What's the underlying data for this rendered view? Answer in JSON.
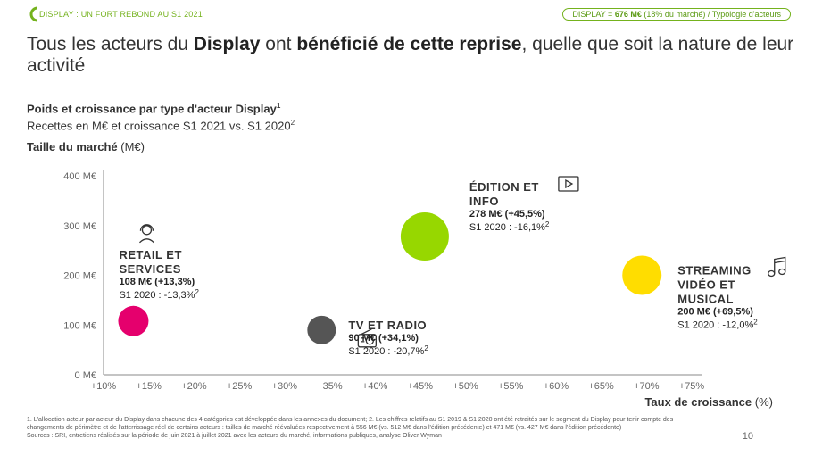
{
  "header": {
    "breadcrumb": "DISPLAY : UN FORT REBOND AU S1 2021",
    "badge_prefix": "DISPLAY = ",
    "badge_value": "676 M€",
    "badge_suffix": " (18% du marché) / Typologie d'acteurs"
  },
  "title": {
    "part1": "Tous les acteurs du ",
    "bold1": "Display",
    "part2": " ont ",
    "bold2": "bénéficié de cette reprise",
    "part3": ", quelle que soit la nature de leur activité"
  },
  "subtitle": {
    "line1": "Poids et croissance par type d'acteur Display",
    "line1_sup": "1",
    "line2": "Recettes en M€ et croissance S1 2021 vs. S1 2020",
    "line2_sup": "2"
  },
  "y_axis_title": {
    "bold": "Taille du marché",
    "unit": " (M€)"
  },
  "x_axis_title": {
    "bold": "Taux de croissance",
    "unit": " (%)"
  },
  "colors": {
    "accent": "#74b21d",
    "retail": "#e5006d",
    "tv": "#555555",
    "edition": "#97d700",
    "streaming": "#ffdd00"
  },
  "chart_data": {
    "type": "scatter",
    "xlim": [
      10,
      75
    ],
    "ylim": [
      0,
      400
    ],
    "x_ticks": [
      "+10%",
      "+15%",
      "+20%",
      "+25%",
      "+30%",
      "+35%",
      "+40%",
      "+45%",
      "+50%",
      "+55%",
      "+60%",
      "+65%",
      "+70%",
      "+75%"
    ],
    "x_tick_values": [
      10,
      15,
      20,
      25,
      30,
      35,
      40,
      45,
      50,
      55,
      60,
      65,
      70,
      75
    ],
    "y_ticks": [
      "0 M€",
      "100 M€",
      "200 M€",
      "300 M€",
      "400 M€"
    ],
    "y_tick_values": [
      0,
      100,
      200,
      300,
      400
    ],
    "points": [
      {
        "name": [
          "RETAIL ET",
          "SERVICES"
        ],
        "x": 13.3,
        "y": 108,
        "value_text": "108 M€ (+13,3%)",
        "prev_text": "S1 2020 : -13,3%",
        "prev_sup": "2",
        "color": "#e5006d",
        "icon": "person-headset-icon",
        "label_side": "top"
      },
      {
        "name": [
          "TV ET RADIO"
        ],
        "x": 34.1,
        "y": 90,
        "value_text": "90 M€ (+34,1%)",
        "prev_text": "S1 2020 : -20,7%",
        "prev_sup": "2",
        "color": "#555555",
        "icon": "radio-icon",
        "label_side": "right"
      },
      {
        "name": [
          "ÉDITION ET",
          "INFO"
        ],
        "x": 45.5,
        "y": 278,
        "value_text": "278 M€ (+45,5%)",
        "prev_text": "S1 2020 : -16,1%",
        "prev_sup": "2",
        "color": "#97d700",
        "icon": "play-icon",
        "label_side": "top"
      },
      {
        "name": [
          "STREAMING",
          "VIDÉO ET",
          "MUSICAL"
        ],
        "x": 69.5,
        "y": 200,
        "value_text": "200 M€ (+69,5%)",
        "prev_text": "S1 2020 : -12,0%",
        "prev_sup": "2",
        "color": "#ffdd00",
        "icon": "music-note-icon",
        "label_side": "right"
      }
    ]
  },
  "footnote": {
    "line1": "1. L'allocation acteur par acteur du Display dans chacune des 4 catégories est développée dans les annexes du document; 2. Les chiffres relatifs au S1 2019 & S1 2020 ont été retraités sur le segment du Display pour tenir compte des",
    "line2": "changements de périmètre et de l'atterrissage réel de certains acteurs : tailles de marché réévaluées respectivement à 556 M€ (vs. 512 M€ dans l'édition précédente) et 471 M€ (vs. 427 M€ dans l'édition précédente)",
    "line3": "Sources : SRI, entretiens réalisés sur la période de juin 2021 à juillet 2021 avec les acteurs du marché, informations publiques, analyse Oliver Wyman"
  },
  "page_number": "10"
}
